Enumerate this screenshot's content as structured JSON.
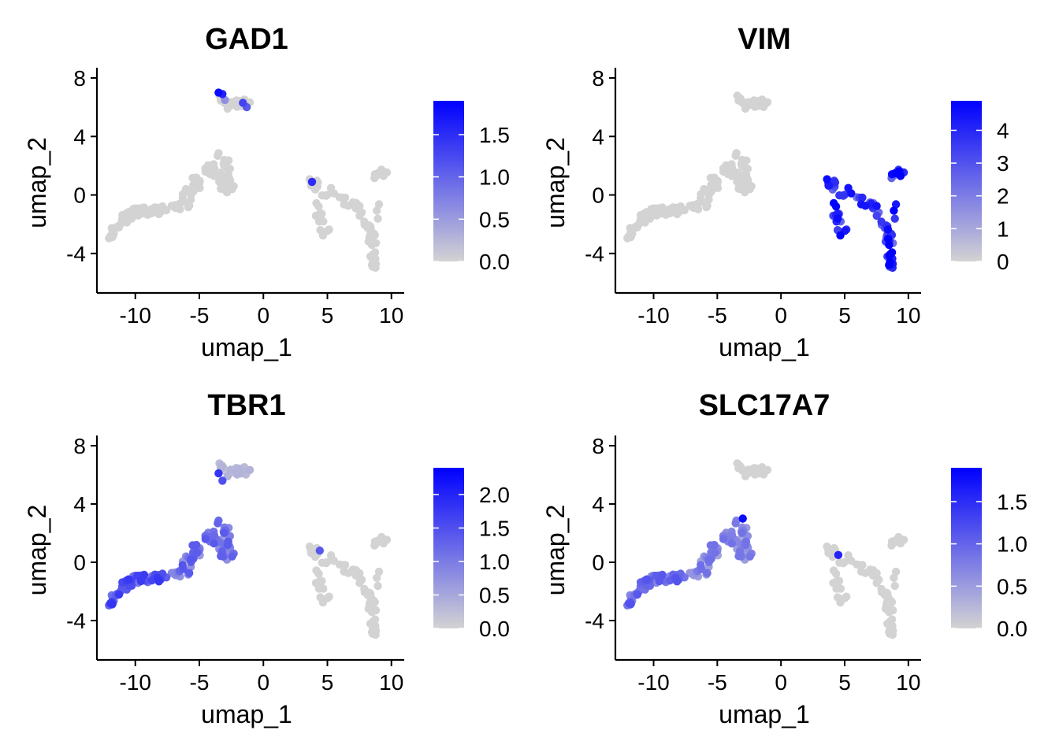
{
  "colors": {
    "low": "#d3d3d3",
    "high": "#0000ff",
    "axis": "#000000",
    "background": "#ffffff"
  },
  "chart_data": [
    {
      "type": "scatter",
      "title": "GAD1",
      "xlabel": "umap_1",
      "ylabel": "umap_2",
      "xticks": [
        -10,
        -5,
        0,
        5,
        10
      ],
      "yticks": [
        -4,
        0,
        4,
        8
      ],
      "xtick_labels": [
        "-10",
        "-5",
        "0",
        "5",
        "10"
      ],
      "ytick_labels": [
        "-4",
        "0",
        "4",
        "8"
      ],
      "xlim": [
        -13,
        11
      ],
      "ylim": [
        -6.7,
        8.7
      ],
      "legend": {
        "min": 0,
        "max": 1.9,
        "ticks": [
          0.0,
          0.5,
          1.0,
          1.5
        ],
        "tick_labels": [
          "0.0",
          "0.5",
          "1.0",
          "1.5"
        ],
        "position": "right"
      },
      "expression": {
        "cluster_a": 0.0,
        "cluster_a_hot": [
          [
            -3.5,
            7.0,
            1.8
          ],
          [
            -3.2,
            6.9,
            1.6
          ],
          [
            -1.6,
            6.3,
            1.3
          ],
          [
            -1.3,
            6.0,
            1.1
          ],
          [
            3.8,
            0.9,
            1.5
          ],
          [
            -3.0,
            6.5,
            0.6
          ]
        ],
        "cluster_b": 0.0,
        "cluster_c": 0.0,
        "cluster_d": 0.0,
        "cluster_e": 0.0,
        "cluster_f": 0.0
      }
    },
    {
      "type": "scatter",
      "title": "VIM",
      "xlabel": "umap_1",
      "ylabel": "umap_2",
      "xticks": [
        -10,
        -5,
        0,
        5,
        10
      ],
      "yticks": [
        -4,
        0,
        4,
        8
      ],
      "xtick_labels": [
        "-10",
        "-5",
        "0",
        "5",
        "10"
      ],
      "ytick_labels": [
        "-4",
        "0",
        "4",
        "8"
      ],
      "xlim": [
        -13,
        11
      ],
      "ylim": [
        -6.7,
        8.7
      ],
      "legend": {
        "min": 0,
        "max": 4.9,
        "ticks": [
          0,
          1,
          2,
          3,
          4
        ],
        "tick_labels": [
          "0",
          "1",
          "2",
          "3",
          "4"
        ],
        "position": "right"
      },
      "expression": {
        "cluster_a": 0.0,
        "cluster_a_hot": [],
        "cluster_b": 0.0,
        "cluster_c": 0.0,
        "cluster_d": 3.9,
        "cluster_e": 3.6,
        "cluster_f": 4.2
      }
    },
    {
      "type": "scatter",
      "title": "TBR1",
      "xlabel": "umap_1",
      "ylabel": "umap_2",
      "xticks": [
        -10,
        -5,
        0,
        5,
        10
      ],
      "yticks": [
        -4,
        0,
        4,
        8
      ],
      "xtick_labels": [
        "-10",
        "-5",
        "0",
        "5",
        "10"
      ],
      "ytick_labels": [
        "-4",
        "0",
        "4",
        "8"
      ],
      "xlim": [
        -13,
        11
      ],
      "ylim": [
        -6.7,
        8.7
      ],
      "legend": {
        "min": 0,
        "max": 2.4,
        "ticks": [
          0.0,
          0.5,
          1.0,
          1.5,
          2.0
        ],
        "tick_labels": [
          "0.0",
          "0.5",
          "1.0",
          "1.5",
          "2.0"
        ],
        "position": "right"
      },
      "expression": {
        "cluster_a": 0.3,
        "cluster_a_hot": [
          [
            -3.5,
            6.1,
            1.8
          ],
          [
            -3.2,
            5.6,
            1.5
          ],
          [
            4.4,
            0.8,
            1.4
          ]
        ],
        "cluster_b": 1.4,
        "cluster_c": 1.1,
        "cluster_d": 0.0,
        "cluster_e": 0.0,
        "cluster_f": 0.0
      }
    },
    {
      "type": "scatter",
      "title": "SLC17A7",
      "xlabel": "umap_1",
      "ylabel": "umap_2",
      "xticks": [
        -10,
        -5,
        0,
        5,
        10
      ],
      "yticks": [
        -4,
        0,
        4,
        8
      ],
      "xtick_labels": [
        "-10",
        "-5",
        "0",
        "5",
        "10"
      ],
      "ytick_labels": [
        "-4",
        "0",
        "4",
        "8"
      ],
      "xlim": [
        -13,
        11
      ],
      "ylim": [
        -6.7,
        8.7
      ],
      "legend": {
        "min": 0,
        "max": 1.9,
        "ticks": [
          0.0,
          0.5,
          1.0,
          1.5
        ],
        "tick_labels": [
          "0.0",
          "0.5",
          "1.0",
          "1.5"
        ],
        "position": "right"
      },
      "expression": {
        "cluster_a": 0.0,
        "cluster_a_hot": [
          [
            -3.0,
            3.0,
            1.8
          ],
          [
            4.5,
            0.5,
            1.6
          ]
        ],
        "cluster_b": 0.9,
        "cluster_c": 0.7,
        "cluster_d": 0.0,
        "cluster_e": 0.0,
        "cluster_f": 0.0
      }
    }
  ]
}
